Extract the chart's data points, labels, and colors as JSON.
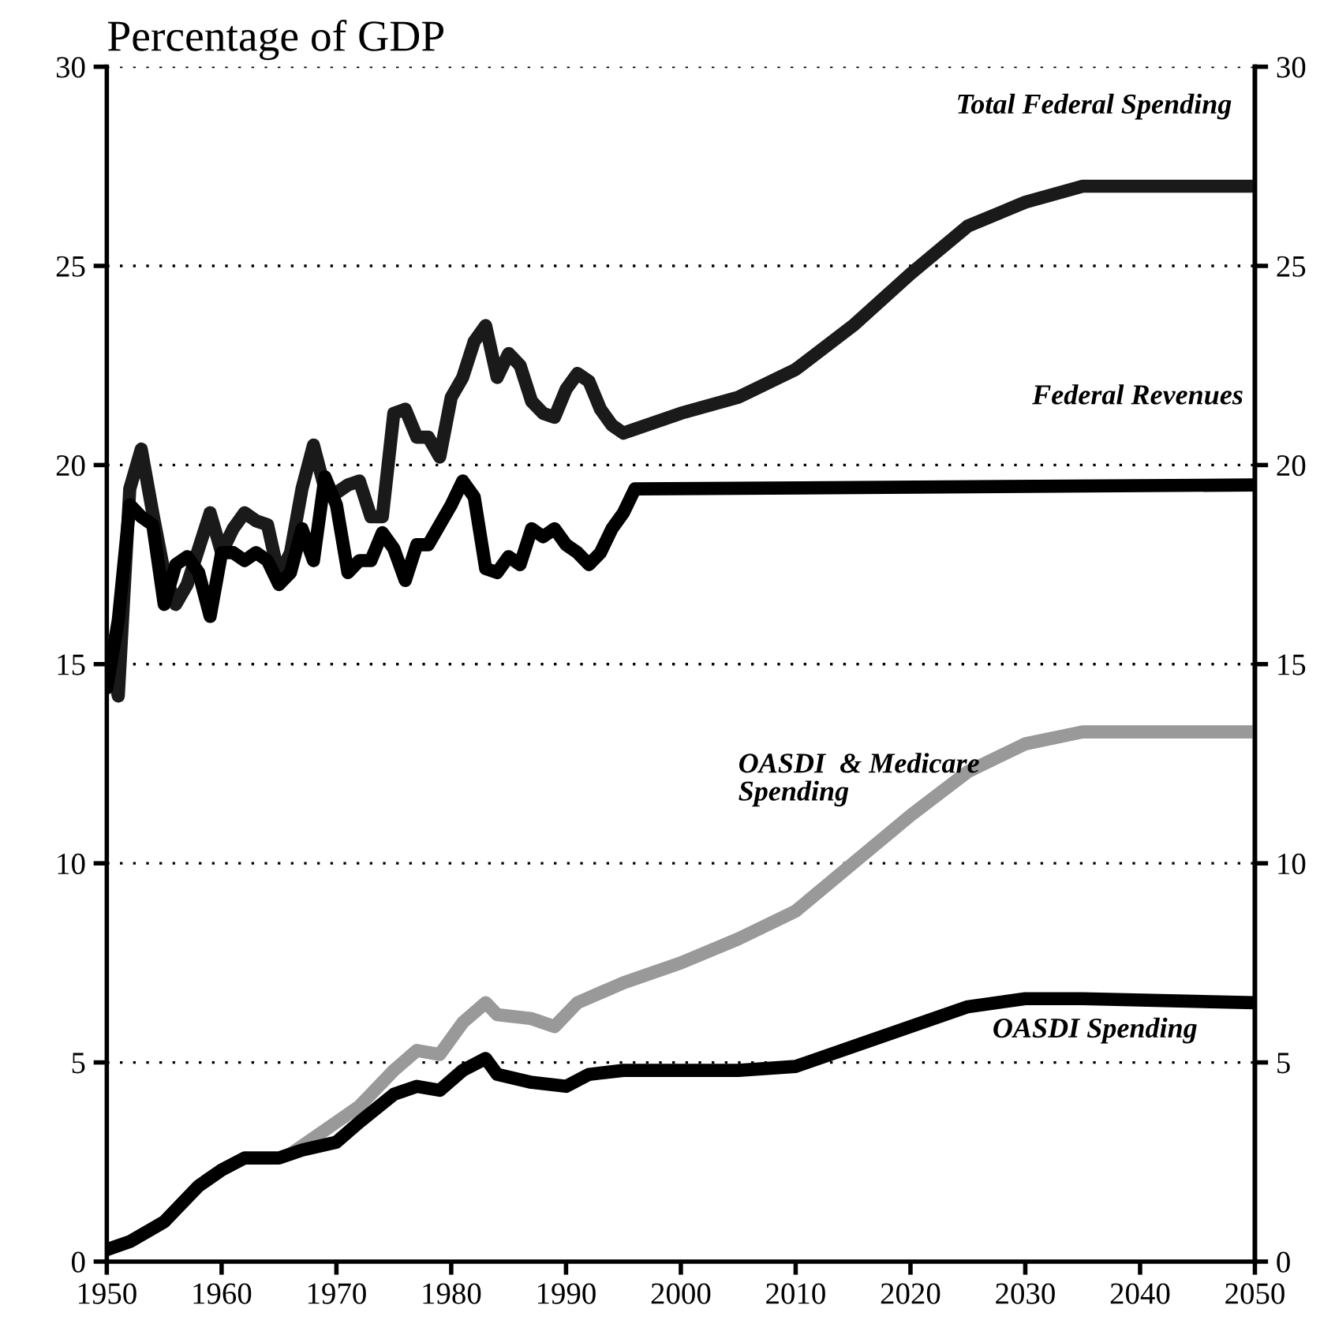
{
  "chart_data": {
    "type": "line",
    "title": "Percentage of GDP",
    "xlim": [
      1950,
      2050
    ],
    "xticks": [
      1950,
      1960,
      1970,
      1980,
      1990,
      2000,
      2010,
      2020,
      2030,
      2040,
      2050
    ],
    "ylim": [
      0,
      30
    ],
    "yticks": [
      0,
      5,
      10,
      15,
      20,
      25,
      30
    ],
    "y2lim": [
      0,
      30
    ],
    "y2ticks": [
      0,
      5,
      10,
      15,
      20,
      25,
      30
    ],
    "grid": "y",
    "legend": false,
    "line_style": "solid",
    "marker": "none",
    "series": [
      {
        "name": "Total Federal Spending",
        "color": "#1a1a1a",
        "x": [
          1950,
          1951,
          1952,
          1953,
          1954,
          1955,
          1956,
          1957,
          1958,
          1959,
          1960,
          1961,
          1962,
          1963,
          1964,
          1965,
          1966,
          1967,
          1968,
          1969,
          1970,
          1971,
          1972,
          1973,
          1974,
          1975,
          1976,
          1977,
          1978,
          1979,
          1980,
          1981,
          1982,
          1983,
          1984,
          1985,
          1986,
          1987,
          1988,
          1989,
          1990,
          1991,
          1992,
          1993,
          1994,
          1995,
          1996,
          2000,
          2005,
          2010,
          2015,
          2020,
          2025,
          2030,
          2035,
          2050
        ],
        "values": [
          15.6,
          14.2,
          19.4,
          20.4,
          18.8,
          17.3,
          16.5,
          17.0,
          17.9,
          18.8,
          17.8,
          18.4,
          18.8,
          18.6,
          18.5,
          17.2,
          17.8,
          19.4,
          20.5,
          19.4,
          19.3,
          19.5,
          19.6,
          18.7,
          18.7,
          21.3,
          21.4,
          20.7,
          20.7,
          20.2,
          21.7,
          22.2,
          23.1,
          23.5,
          22.2,
          22.8,
          22.5,
          21.6,
          21.3,
          21.2,
          21.9,
          22.3,
          22.1,
          21.4,
          21.0,
          20.8,
          20.9,
          21.3,
          21.7,
          22.4,
          23.5,
          24.8,
          26.0,
          26.6,
          27.0,
          27.0
        ]
      },
      {
        "name": "Federal Revenues",
        "color": "#000000",
        "x": [
          1950,
          1951,
          1952,
          1953,
          1954,
          1955,
          1956,
          1957,
          1958,
          1959,
          1960,
          1961,
          1962,
          1963,
          1964,
          1965,
          1966,
          1967,
          1968,
          1969,
          1970,
          1971,
          1972,
          1973,
          1974,
          1975,
          1976,
          1977,
          1978,
          1979,
          1980,
          1981,
          1982,
          1983,
          1984,
          1985,
          1986,
          1987,
          1988,
          1989,
          1990,
          1991,
          1992,
          1993,
          1994,
          1995,
          1996,
          2050
        ],
        "values": [
          14.4,
          16.1,
          19.0,
          18.7,
          18.5,
          16.5,
          17.5,
          17.7,
          17.3,
          16.2,
          17.8,
          17.8,
          17.6,
          17.8,
          17.6,
          17.0,
          17.3,
          18.4,
          17.6,
          19.7,
          19.0,
          17.3,
          17.6,
          17.6,
          18.3,
          17.9,
          17.1,
          18.0,
          18.0,
          18.5,
          19.0,
          19.6,
          19.2,
          17.4,
          17.3,
          17.7,
          17.5,
          18.4,
          18.2,
          18.4,
          18.0,
          17.8,
          17.5,
          17.8,
          18.4,
          18.8,
          19.4,
          19.5
        ]
      },
      {
        "name": "OASDI  & Medicare\nSpending",
        "color": "#999999",
        "x": [
          1966,
          1970,
          1972,
          1975,
          1977,
          1979,
          1981,
          1983,
          1984,
          1987,
          1989,
          1991,
          1995,
          2000,
          2005,
          2010,
          2015,
          2020,
          2025,
          2030,
          2035,
          2050
        ],
        "values": [
          2.7,
          3.5,
          3.9,
          4.8,
          5.3,
          5.2,
          6.0,
          6.5,
          6.2,
          6.1,
          5.9,
          6.5,
          7.0,
          7.5,
          8.1,
          8.8,
          10.0,
          11.2,
          12.3,
          13.0,
          13.3,
          13.3
        ]
      },
      {
        "name": "OASDI Spending",
        "color": "#000000",
        "x": [
          1950,
          1952,
          1955,
          1958,
          1960,
          1962,
          1965,
          1967,
          1970,
          1972,
          1975,
          1977,
          1979,
          1981,
          1983,
          1984,
          1987,
          1990,
          1992,
          1995,
          2000,
          2005,
          2010,
          2015,
          2020,
          2025,
          2030,
          2035,
          2050
        ],
        "values": [
          0.3,
          0.5,
          1.0,
          1.9,
          2.3,
          2.6,
          2.6,
          2.8,
          3.0,
          3.5,
          4.2,
          4.4,
          4.3,
          4.8,
          5.1,
          4.7,
          4.5,
          4.4,
          4.7,
          4.8,
          4.8,
          4.8,
          4.9,
          5.4,
          5.9,
          6.4,
          6.6,
          6.6,
          6.5
        ]
      }
    ]
  }
}
